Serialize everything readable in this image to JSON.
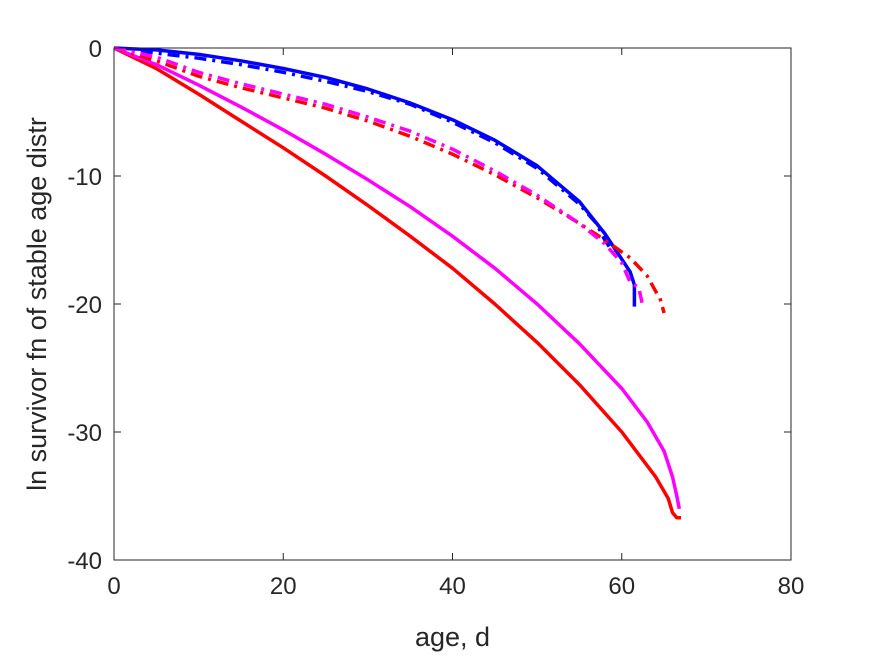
{
  "chart_data": {
    "type": "line",
    "title": "",
    "xlabel": "age, d",
    "ylabel": "ln survivor fn of stable age distr",
    "xlim": [
      0,
      80
    ],
    "ylim": [
      -40,
      0
    ],
    "xticks": [
      0,
      20,
      40,
      60,
      80
    ],
    "yticks": [
      0,
      -10,
      -20,
      -30,
      -40
    ],
    "xtick_labels": [
      "0",
      "20",
      "40",
      "60",
      "80"
    ],
    "ytick_labels": [
      "0",
      "-10",
      "-20",
      "-30",
      "-40"
    ],
    "grid": false,
    "legend": "none",
    "series": [
      {
        "color": "#ff0000",
        "style": "solid",
        "points": [
          [
            0,
            0
          ],
          [
            5,
            -1.6
          ],
          [
            10,
            -3.6
          ],
          [
            15,
            -5.7
          ],
          [
            20,
            -7.8
          ],
          [
            25,
            -10.0
          ],
          [
            30,
            -12.3
          ],
          [
            35,
            -14.7
          ],
          [
            40,
            -17.2
          ],
          [
            45,
            -20.0
          ],
          [
            50,
            -23.0
          ],
          [
            55,
            -26.3
          ],
          [
            60,
            -30.0
          ],
          [
            64,
            -33.5
          ],
          [
            65.5,
            -35.2
          ],
          [
            66,
            -36.3
          ],
          [
            66.5,
            -36.7
          ],
          [
            67,
            -36.7
          ]
        ]
      },
      {
        "color": "#ff00ff",
        "style": "solid",
        "points": [
          [
            0,
            0
          ],
          [
            5,
            -1.3
          ],
          [
            10,
            -2.9
          ],
          [
            15,
            -4.6
          ],
          [
            20,
            -6.4
          ],
          [
            25,
            -8.3
          ],
          [
            30,
            -10.3
          ],
          [
            35,
            -12.4
          ],
          [
            40,
            -14.7
          ],
          [
            45,
            -17.2
          ],
          [
            50,
            -20.0
          ],
          [
            55,
            -23.1
          ],
          [
            60,
            -26.6
          ],
          [
            63,
            -29.2
          ],
          [
            65,
            -31.5
          ],
          [
            66,
            -33.5
          ],
          [
            66.5,
            -35.0
          ],
          [
            66.8,
            -36.0
          ]
        ]
      },
      {
        "color": "#0000ff",
        "style": "solid",
        "points": [
          [
            0,
            0
          ],
          [
            5,
            -0.15
          ],
          [
            10,
            -0.5
          ],
          [
            15,
            -1.0
          ],
          [
            20,
            -1.6
          ],
          [
            25,
            -2.3
          ],
          [
            30,
            -3.2
          ],
          [
            35,
            -4.3
          ],
          [
            40,
            -5.6
          ],
          [
            45,
            -7.2
          ],
          [
            50,
            -9.2
          ],
          [
            55,
            -12.0
          ],
          [
            58,
            -14.5
          ],
          [
            60,
            -16.5
          ],
          [
            61,
            -17.5
          ],
          [
            61.5,
            -18.5
          ],
          [
            61.5,
            -20.2
          ]
        ]
      },
      {
        "color": "#0000ff",
        "style": "dashdot",
        "points": [
          [
            0,
            0
          ],
          [
            5,
            -0.4
          ],
          [
            10,
            -0.8
          ],
          [
            15,
            -1.3
          ],
          [
            20,
            -1.9
          ],
          [
            25,
            -2.6
          ],
          [
            30,
            -3.4
          ],
          [
            35,
            -4.4
          ],
          [
            40,
            -5.8
          ],
          [
            45,
            -7.4
          ],
          [
            50,
            -9.4
          ],
          [
            55,
            -12.2
          ],
          [
            57,
            -13.7
          ],
          [
            58,
            -15.0
          ],
          [
            59,
            -16.0
          ]
        ]
      },
      {
        "color": "#ff0000",
        "style": "dashdot",
        "points": [
          [
            0,
            0
          ],
          [
            5,
            -1.0
          ],
          [
            10,
            -2.2
          ],
          [
            15,
            -3.1
          ],
          [
            20,
            -3.9
          ],
          [
            25,
            -4.7
          ],
          [
            30,
            -5.7
          ],
          [
            35,
            -6.9
          ],
          [
            40,
            -8.3
          ],
          [
            45,
            -9.9
          ],
          [
            50,
            -11.7
          ],
          [
            55,
            -13.7
          ],
          [
            58,
            -15.0
          ],
          [
            61,
            -16.4
          ],
          [
            63,
            -17.8
          ],
          [
            64,
            -19.0
          ],
          [
            64.5,
            -19.5
          ],
          [
            65,
            -20.7
          ]
        ]
      },
      {
        "color": "#ff00ff",
        "style": "dashdot",
        "points": [
          [
            0,
            0
          ],
          [
            5,
            -0.7
          ],
          [
            10,
            -1.9
          ],
          [
            15,
            -2.8
          ],
          [
            20,
            -3.6
          ],
          [
            25,
            -4.4
          ],
          [
            30,
            -5.4
          ],
          [
            35,
            -6.5
          ],
          [
            40,
            -7.9
          ],
          [
            45,
            -9.6
          ],
          [
            50,
            -11.5
          ],
          [
            55,
            -13.7
          ],
          [
            58,
            -15.3
          ],
          [
            60,
            -16.8
          ],
          [
            61,
            -18.3
          ],
          [
            62,
            -18.7
          ],
          [
            62.5,
            -20.2
          ]
        ]
      }
    ]
  }
}
